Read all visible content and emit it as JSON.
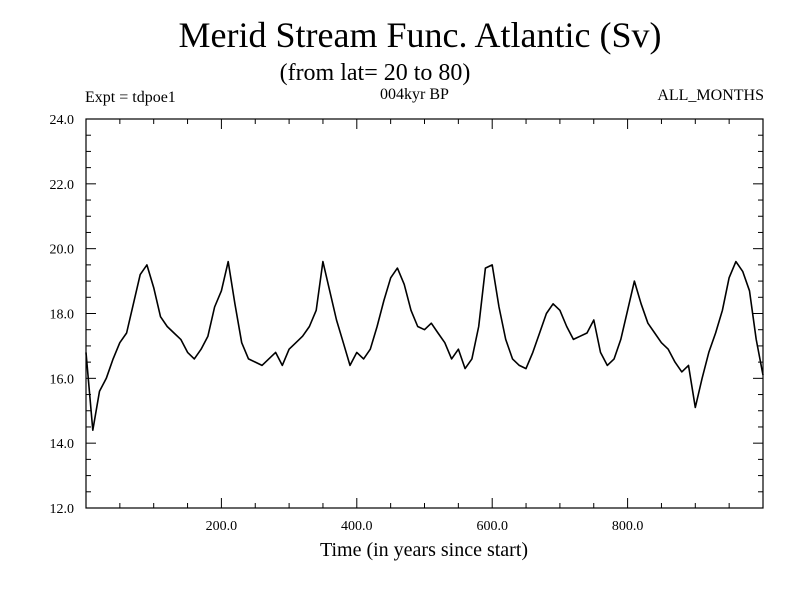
{
  "chart_data": {
    "type": "line",
    "title": "Merid Stream Func. Atlantic (Sv)",
    "subtitle": "(from lat= 20 to 80)",
    "annotations": {
      "left": "Expt = tdpoe1",
      "center": "004kyr BP",
      "right": "ALL_MONTHS"
    },
    "xlabel": "Time (in years since start)",
    "ylabel": "",
    "xlim": [
      0,
      1000
    ],
    "ylim": [
      12.0,
      24.0
    ],
    "x_ticks": [
      {
        "value": 200,
        "label": "200.0"
      },
      {
        "value": 400,
        "label": "400.0"
      },
      {
        "value": 600,
        "label": "600.0"
      },
      {
        "value": 800,
        "label": "800.0"
      }
    ],
    "y_ticks": [
      {
        "value": 12.0,
        "label": "12.0"
      },
      {
        "value": 14.0,
        "label": "14.0"
      },
      {
        "value": 16.0,
        "label": "16.0"
      },
      {
        "value": 18.0,
        "label": "18.0"
      },
      {
        "value": 20.0,
        "label": "20.0"
      },
      {
        "value": 22.0,
        "label": "22.0"
      },
      {
        "value": 24.0,
        "label": "24.0"
      }
    ],
    "grid": false,
    "series": [
      {
        "name": "Merid Stream Func. Atlantic",
        "x": [
          0,
          10,
          20,
          30,
          40,
          50,
          60,
          70,
          80,
          90,
          100,
          110,
          120,
          130,
          140,
          150,
          160,
          170,
          180,
          190,
          200,
          210,
          220,
          230,
          240,
          250,
          260,
          270,
          280,
          290,
          300,
          310,
          320,
          330,
          340,
          350,
          360,
          370,
          380,
          390,
          400,
          410,
          420,
          430,
          440,
          450,
          460,
          470,
          480,
          490,
          500,
          510,
          520,
          530,
          540,
          550,
          560,
          570,
          580,
          590,
          600,
          610,
          620,
          630,
          640,
          650,
          660,
          670,
          680,
          690,
          700,
          710,
          720,
          730,
          740,
          750,
          760,
          770,
          780,
          790,
          800,
          810,
          820,
          830,
          840,
          850,
          860,
          870,
          880,
          890,
          900,
          910,
          920,
          930,
          940,
          950,
          960,
          970,
          980,
          990,
          1000
        ],
        "values": [
          16.8,
          14.4,
          15.6,
          16.0,
          16.6,
          17.1,
          17.4,
          18.3,
          19.2,
          19.5,
          18.8,
          17.9,
          17.6,
          17.4,
          17.2,
          16.8,
          16.6,
          16.9,
          17.3,
          18.2,
          18.7,
          19.6,
          18.3,
          17.1,
          16.6,
          16.5,
          16.4,
          16.6,
          16.8,
          16.4,
          16.9,
          17.1,
          17.3,
          17.6,
          18.1,
          19.6,
          18.7,
          17.8,
          17.1,
          16.4,
          16.8,
          16.6,
          16.9,
          17.6,
          18.4,
          19.1,
          19.4,
          18.9,
          18.1,
          17.6,
          17.5,
          17.7,
          17.4,
          17.1,
          16.6,
          16.9,
          16.3,
          16.6,
          17.6,
          19.4,
          19.5,
          18.2,
          17.2,
          16.6,
          16.4,
          16.3,
          16.8,
          17.4,
          18.0,
          18.3,
          18.1,
          17.6,
          17.2,
          17.3,
          17.4,
          17.8,
          16.8,
          16.4,
          16.6,
          17.2,
          18.1,
          19.0,
          18.3,
          17.7,
          17.4,
          17.1,
          16.9,
          16.5,
          16.2,
          16.4,
          15.1,
          16.0,
          16.8,
          17.4,
          18.1,
          19.1,
          19.6,
          19.3,
          18.7,
          17.2,
          16.1
        ]
      }
    ]
  }
}
